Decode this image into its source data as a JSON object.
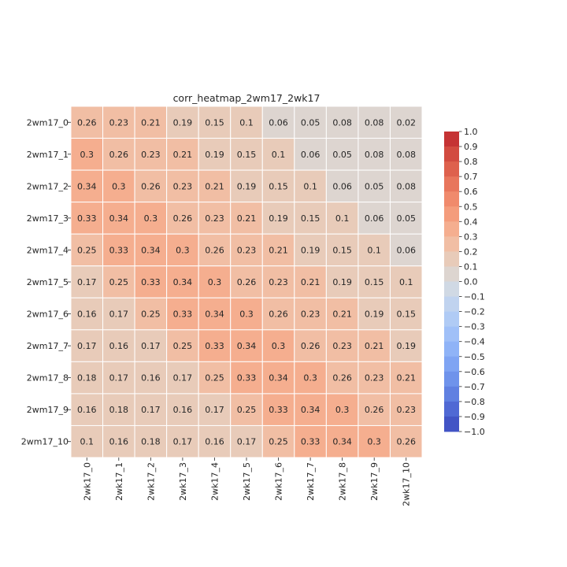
{
  "chart_data": {
    "type": "heatmap",
    "title": "corr_heatmap_2wm17_2wk17",
    "row_labels": [
      "2wm17_0",
      "2wm17_1",
      "2wm17_2",
      "2wm17_3",
      "2wm17_4",
      "2wm17_5",
      "2wm17_6",
      "2wm17_7",
      "2wm17_8",
      "2wm17_9",
      "2wm17_10"
    ],
    "col_labels": [
      "2wk17_0",
      "2wk17_1",
      "2wk17_2",
      "2wk17_3",
      "2wk17_4",
      "2wk17_5",
      "2wk17_6",
      "2wk17_7",
      "2wk17_8",
      "2wk17_9",
      "2wk17_10"
    ],
    "values": [
      [
        0.26,
        0.23,
        0.21,
        0.19,
        0.15,
        0.1,
        0.06,
        0.05,
        0.08,
        0.08,
        0.02
      ],
      [
        0.3,
        0.26,
        0.23,
        0.21,
        0.19,
        0.15,
        0.1,
        0.06,
        0.05,
        0.08,
        0.08
      ],
      [
        0.34,
        0.3,
        0.26,
        0.23,
        0.21,
        0.19,
        0.15,
        0.1,
        0.06,
        0.05,
        0.08
      ],
      [
        0.33,
        0.34,
        0.3,
        0.26,
        0.23,
        0.21,
        0.19,
        0.15,
        0.1,
        0.06,
        0.05
      ],
      [
        0.25,
        0.33,
        0.34,
        0.3,
        0.26,
        0.23,
        0.21,
        0.19,
        0.15,
        0.1,
        0.06
      ],
      [
        0.17,
        0.25,
        0.33,
        0.34,
        0.3,
        0.26,
        0.23,
        0.21,
        0.19,
        0.15,
        0.1
      ],
      [
        0.16,
        0.17,
        0.25,
        0.33,
        0.34,
        0.3,
        0.26,
        0.23,
        0.21,
        0.19,
        0.15
      ],
      [
        0.17,
        0.16,
        0.17,
        0.25,
        0.33,
        0.34,
        0.3,
        0.26,
        0.23,
        0.21,
        0.19
      ],
      [
        0.18,
        0.17,
        0.16,
        0.17,
        0.25,
        0.33,
        0.34,
        0.3,
        0.26,
        0.23,
        0.21
      ],
      [
        0.16,
        0.18,
        0.17,
        0.16,
        0.17,
        0.25,
        0.33,
        0.34,
        0.3,
        0.26,
        0.23
      ],
      [
        0.1,
        0.16,
        0.18,
        0.17,
        0.16,
        0.17,
        0.25,
        0.33,
        0.34,
        0.3,
        0.26
      ]
    ],
    "vmin": -1.0,
    "vmax": 1.0,
    "colormap": "coolwarm",
    "colorbar_ticks": [
      "1.0",
      "0.9",
      "0.8",
      "0.7",
      "0.6",
      "0.5",
      "0.4",
      "0.3",
      "0.2",
      "0.1",
      "0.0",
      "−0.1",
      "−0.2",
      "−0.3",
      "−0.4",
      "−0.5",
      "−0.6",
      "−0.7",
      "−0.8",
      "−0.9",
      "−1.0"
    ],
    "colorbar_levels": [
      {
        "level": 0.9,
        "color": "#c53334"
      },
      {
        "level": 0.8,
        "color": "#d24b40"
      },
      {
        "level": 0.7,
        "color": "#de614d"
      },
      {
        "level": 0.6,
        "color": "#e8765c"
      },
      {
        "level": 0.5,
        "color": "#f08a6c"
      },
      {
        "level": 0.4,
        "color": "#f49c7c"
      },
      {
        "level": 0.3,
        "color": "#f5ae8f"
      },
      {
        "level": 0.2,
        "color": "#f1bea4"
      },
      {
        "level": 0.1,
        "color": "#e8cbb9"
      },
      {
        "level": 0.0,
        "color": "#ddd5d0"
      },
      {
        "level": -0.1,
        "color": "#d0d9e4"
      },
      {
        "level": -0.2,
        "color": "#c0d3ef"
      },
      {
        "level": -0.3,
        "color": "#b0cbf5"
      },
      {
        "level": -0.4,
        "color": "#a0c0f8"
      },
      {
        "level": -0.5,
        "color": "#8fb3f7"
      },
      {
        "level": -0.6,
        "color": "#7fa4f3"
      },
      {
        "level": -0.7,
        "color": "#6f93eb"
      },
      {
        "level": -0.8,
        "color": "#6080e1"
      },
      {
        "level": -0.9,
        "color": "#5069d4"
      },
      {
        "level": -1.0,
        "color": "#4254c5"
      }
    ]
  }
}
